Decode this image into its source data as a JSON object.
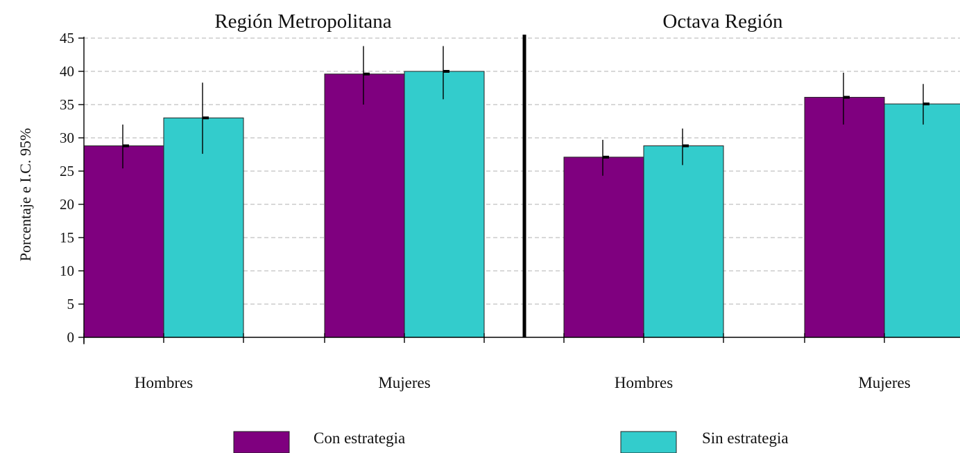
{
  "chart_data": {
    "type": "bar",
    "ylabel": "Porcentaje e I.C. 95%",
    "ylim": [
      0,
      45
    ],
    "yticks": [
      0,
      5,
      10,
      15,
      20,
      25,
      30,
      35,
      40,
      45
    ],
    "grid": true,
    "colors": {
      "Con estrategia": "#7f007f",
      "Sin estrategia": "#33cccc"
    },
    "legend": [
      {
        "label": "Con estrategia",
        "color": "#7f007f"
      },
      {
        "label": "Sin estrategia",
        "color": "#33cccc"
      }
    ],
    "panels": [
      {
        "title": "Región Metropolitana",
        "categories": [
          "Hombres",
          "Mujeres"
        ],
        "series": [
          {
            "name": "Con estrategia",
            "values": [
              28.8,
              39.6
            ],
            "ci_low": [
              25.4,
              35.0
            ],
            "ci_high": [
              32.0,
              43.8
            ]
          },
          {
            "name": "Sin estrategia",
            "values": [
              33.0,
              40.0
            ],
            "ci_low": [
              27.6,
              35.8
            ],
            "ci_high": [
              38.3,
              43.8
            ]
          }
        ]
      },
      {
        "title": "Octava Región",
        "categories": [
          "Hombres",
          "Mujeres"
        ],
        "series": [
          {
            "name": "Con estrategia",
            "values": [
              27.1,
              36.1
            ],
            "ci_low": [
              24.3,
              32.0
            ],
            "ci_high": [
              29.7,
              39.8
            ]
          },
          {
            "name": "Sin estrategia",
            "values": [
              28.8,
              35.1
            ],
            "ci_low": [
              25.9,
              32.0
            ],
            "ci_high": [
              31.4,
              38.1
            ]
          }
        ]
      }
    ]
  }
}
